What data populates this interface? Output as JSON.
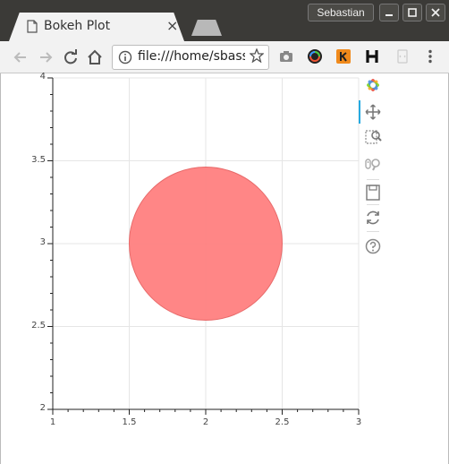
{
  "window": {
    "user": "Sebastian"
  },
  "tab": {
    "title": "Bokeh Plot",
    "close_glyph": "×"
  },
  "toolbar": {
    "url": "file:///home/sbassi,"
  },
  "icons": {
    "back": "back-arrow-icon",
    "forward": "forward-arrow-icon",
    "reload": "reload-icon",
    "home": "home-icon",
    "info": "info-icon",
    "star": "star-icon",
    "camera": "camera-icon",
    "menu": "kebab-menu-icon"
  },
  "bokeh_tools": [
    "bokeh-logo",
    "pan",
    "box-zoom",
    "wheel-zoom",
    "save",
    "reset",
    "help"
  ],
  "colors": {
    "circle_fill": "#ff7f7f",
    "circle_stroke": "#e86a6a",
    "tool_active": "#26aae1",
    "grid": "#e5e5e5"
  },
  "chart_data": {
    "type": "scatter",
    "xlim": [
      1,
      3
    ],
    "ylim": [
      2,
      4
    ],
    "x_ticks": [
      "1",
      "1.5",
      "2",
      "2.5",
      "3"
    ],
    "y_ticks": [
      "2",
      "2.5",
      "3",
      "3.5",
      "4"
    ],
    "x_tick_values": [
      1,
      1.5,
      2,
      2.5,
      3
    ],
    "y_tick_values": [
      2,
      2.5,
      3,
      3.5,
      4
    ],
    "grid": true,
    "points": [
      {
        "x": 2,
        "y": 3,
        "radius": 0.5
      }
    ]
  }
}
